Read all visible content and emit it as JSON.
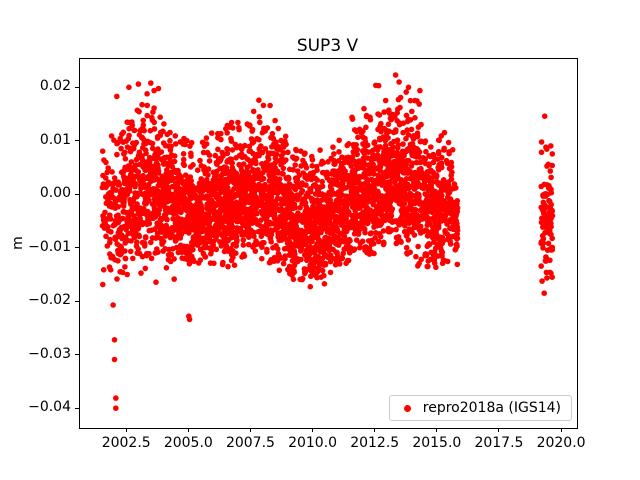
{
  "chart_data": {
    "type": "scatter",
    "title": "SUP3 V",
    "xlabel": "",
    "ylabel": "m",
    "grid": false,
    "xlim": [
      2000.6,
      2020.6
    ],
    "ylim": [
      -0.0435,
      0.0255
    ],
    "x_ticks": [
      2002.5,
      2005.0,
      2007.5,
      2010.0,
      2012.5,
      2015.0,
      2017.5,
      2020.0
    ],
    "x_tick_labels": [
      "2002.5",
      "2005.0",
      "2007.5",
      "2010.0",
      "2012.5",
      "2015.0",
      "2017.5",
      "2020.0"
    ],
    "y_ticks": [
      0.02,
      0.01,
      0.0,
      -0.01,
      -0.02,
      -0.03,
      -0.04
    ],
    "y_tick_labels": [
      "0.02",
      "0.01",
      "0.00",
      "−0.01",
      "−0.02",
      "−0.03",
      "−0.04"
    ],
    "legend_position": "lower right",
    "legend": {
      "label": "repro2018a (IGS14)",
      "marker_color": "#ff0000"
    },
    "marker": {
      "shape": "circle",
      "color": "#ff0000",
      "radius": 2.8
    },
    "series": [
      {
        "name": "repro2018a (IGS14)",
        "color": "#ff0000",
        "description": "Daily vertical position residuals; dense band 2001.5-2015.8, gap, cluster 2019.15-2019.6",
        "point_generation": {
          "seed": 42,
          "bins": [
            [
              2001.5,
              2002.0,
              70,
              -0.0025,
              0.0062,
              -0.017,
              0.0135
            ],
            [
              2002.0,
              2002.5,
              110,
              -0.003,
              0.0068,
              -0.0165,
              0.0185
            ],
            [
              2002.5,
              2003.0,
              120,
              0.0,
              0.007,
              -0.015,
              0.0205
            ],
            [
              2003.0,
              2003.5,
              125,
              0.001,
              0.0072,
              -0.0155,
              0.0208
            ],
            [
              2003.5,
              2004.0,
              130,
              0.0005,
              0.0072,
              -0.0165,
              0.021
            ],
            [
              2004.0,
              2004.5,
              130,
              -0.0015,
              0.0065,
              -0.0175,
              0.0145
            ],
            [
              2004.5,
              2005.0,
              130,
              -0.0025,
              0.006,
              -0.0145,
              0.012
            ],
            [
              2005.0,
              2005.5,
              130,
              -0.003,
              0.0058,
              -0.014,
              0.0115
            ],
            [
              2005.5,
              2006.0,
              135,
              -0.002,
              0.0058,
              -0.013,
              0.0125
            ],
            [
              2006.0,
              2006.5,
              140,
              -0.0012,
              0.0058,
              -0.013,
              0.013
            ],
            [
              2006.5,
              2007.0,
              140,
              -0.001,
              0.006,
              -0.0135,
              0.014
            ],
            [
              2007.0,
              2007.5,
              140,
              0.0,
              0.006,
              -0.012,
              0.0145
            ],
            [
              2007.5,
              2008.0,
              140,
              0.0008,
              0.0064,
              -0.012,
              0.0178
            ],
            [
              2008.0,
              2008.5,
              140,
              0.0,
              0.0064,
              -0.013,
              0.0168
            ],
            [
              2008.5,
              2009.0,
              140,
              -0.0022,
              0.0062,
              -0.015,
              0.0125
            ],
            [
              2009.0,
              2009.5,
              140,
              -0.004,
              0.006,
              -0.016,
              0.01
            ],
            [
              2009.5,
              2010.0,
              140,
              -0.005,
              0.0058,
              -0.0172,
              0.008
            ],
            [
              2010.0,
              2010.5,
              140,
              -0.005,
              0.0058,
              -0.017,
              0.009
            ],
            [
              2010.5,
              2011.0,
              140,
              -0.004,
              0.0058,
              -0.016,
              0.01
            ],
            [
              2011.0,
              2011.5,
              140,
              -0.002,
              0.006,
              -0.013,
              0.012
            ],
            [
              2011.5,
              2012.0,
              140,
              0.0,
              0.0064,
              -0.0115,
              0.015
            ],
            [
              2012.0,
              2012.5,
              140,
              0.0012,
              0.0068,
              -0.011,
              0.017
            ],
            [
              2012.5,
              2013.0,
              140,
              0.003,
              0.0072,
              -0.0095,
              0.0215
            ],
            [
              2013.0,
              2013.5,
              140,
              0.003,
              0.0072,
              -0.01,
              0.022
            ],
            [
              2013.5,
              2014.0,
              135,
              0.0018,
              0.0072,
              -0.012,
              0.02
            ],
            [
              2014.0,
              2014.5,
              130,
              0.0,
              0.0068,
              -0.014,
              0.0195
            ],
            [
              2014.5,
              2015.0,
              130,
              -0.002,
              0.0064,
              -0.015,
              0.0125
            ],
            [
              2015.0,
              2015.5,
              120,
              -0.0022,
              0.0064,
              -0.014,
              0.014
            ],
            [
              2015.5,
              2015.8,
              60,
              -0.004,
              0.0058,
              -0.013,
              0.01
            ],
            [
              2019.15,
              2019.62,
              95,
              -0.0035,
              0.0062,
              -0.0165,
              0.0105
            ]
          ],
          "outliers": [
            [
              2001.93,
              -0.0205
            ],
            [
              2001.99,
              -0.027
            ],
            [
              2001.99,
              -0.0307
            ],
            [
              2002.04,
              -0.0379
            ],
            [
              2002.04,
              -0.0398
            ],
            [
              2002.08,
              0.0185
            ],
            [
              2002.95,
              0.0208
            ],
            [
              2003.3,
              0.019
            ],
            [
              2003.45,
              0.021
            ],
            [
              2003.58,
              0.0196
            ],
            [
              2004.98,
              -0.0226
            ],
            [
              2005.01,
              -0.0232
            ],
            [
              2007.8,
              0.0178
            ],
            [
              2008.25,
              0.0168
            ],
            [
              2012.62,
              0.0205
            ],
            [
              2013.3,
              0.0225
            ],
            [
              2013.44,
              0.0212
            ],
            [
              2013.82,
              0.0202
            ],
            [
              2014.28,
              0.0196
            ],
            [
              2019.3,
              0.0148
            ],
            [
              2019.28,
              -0.0183
            ]
          ]
        }
      }
    ]
  }
}
